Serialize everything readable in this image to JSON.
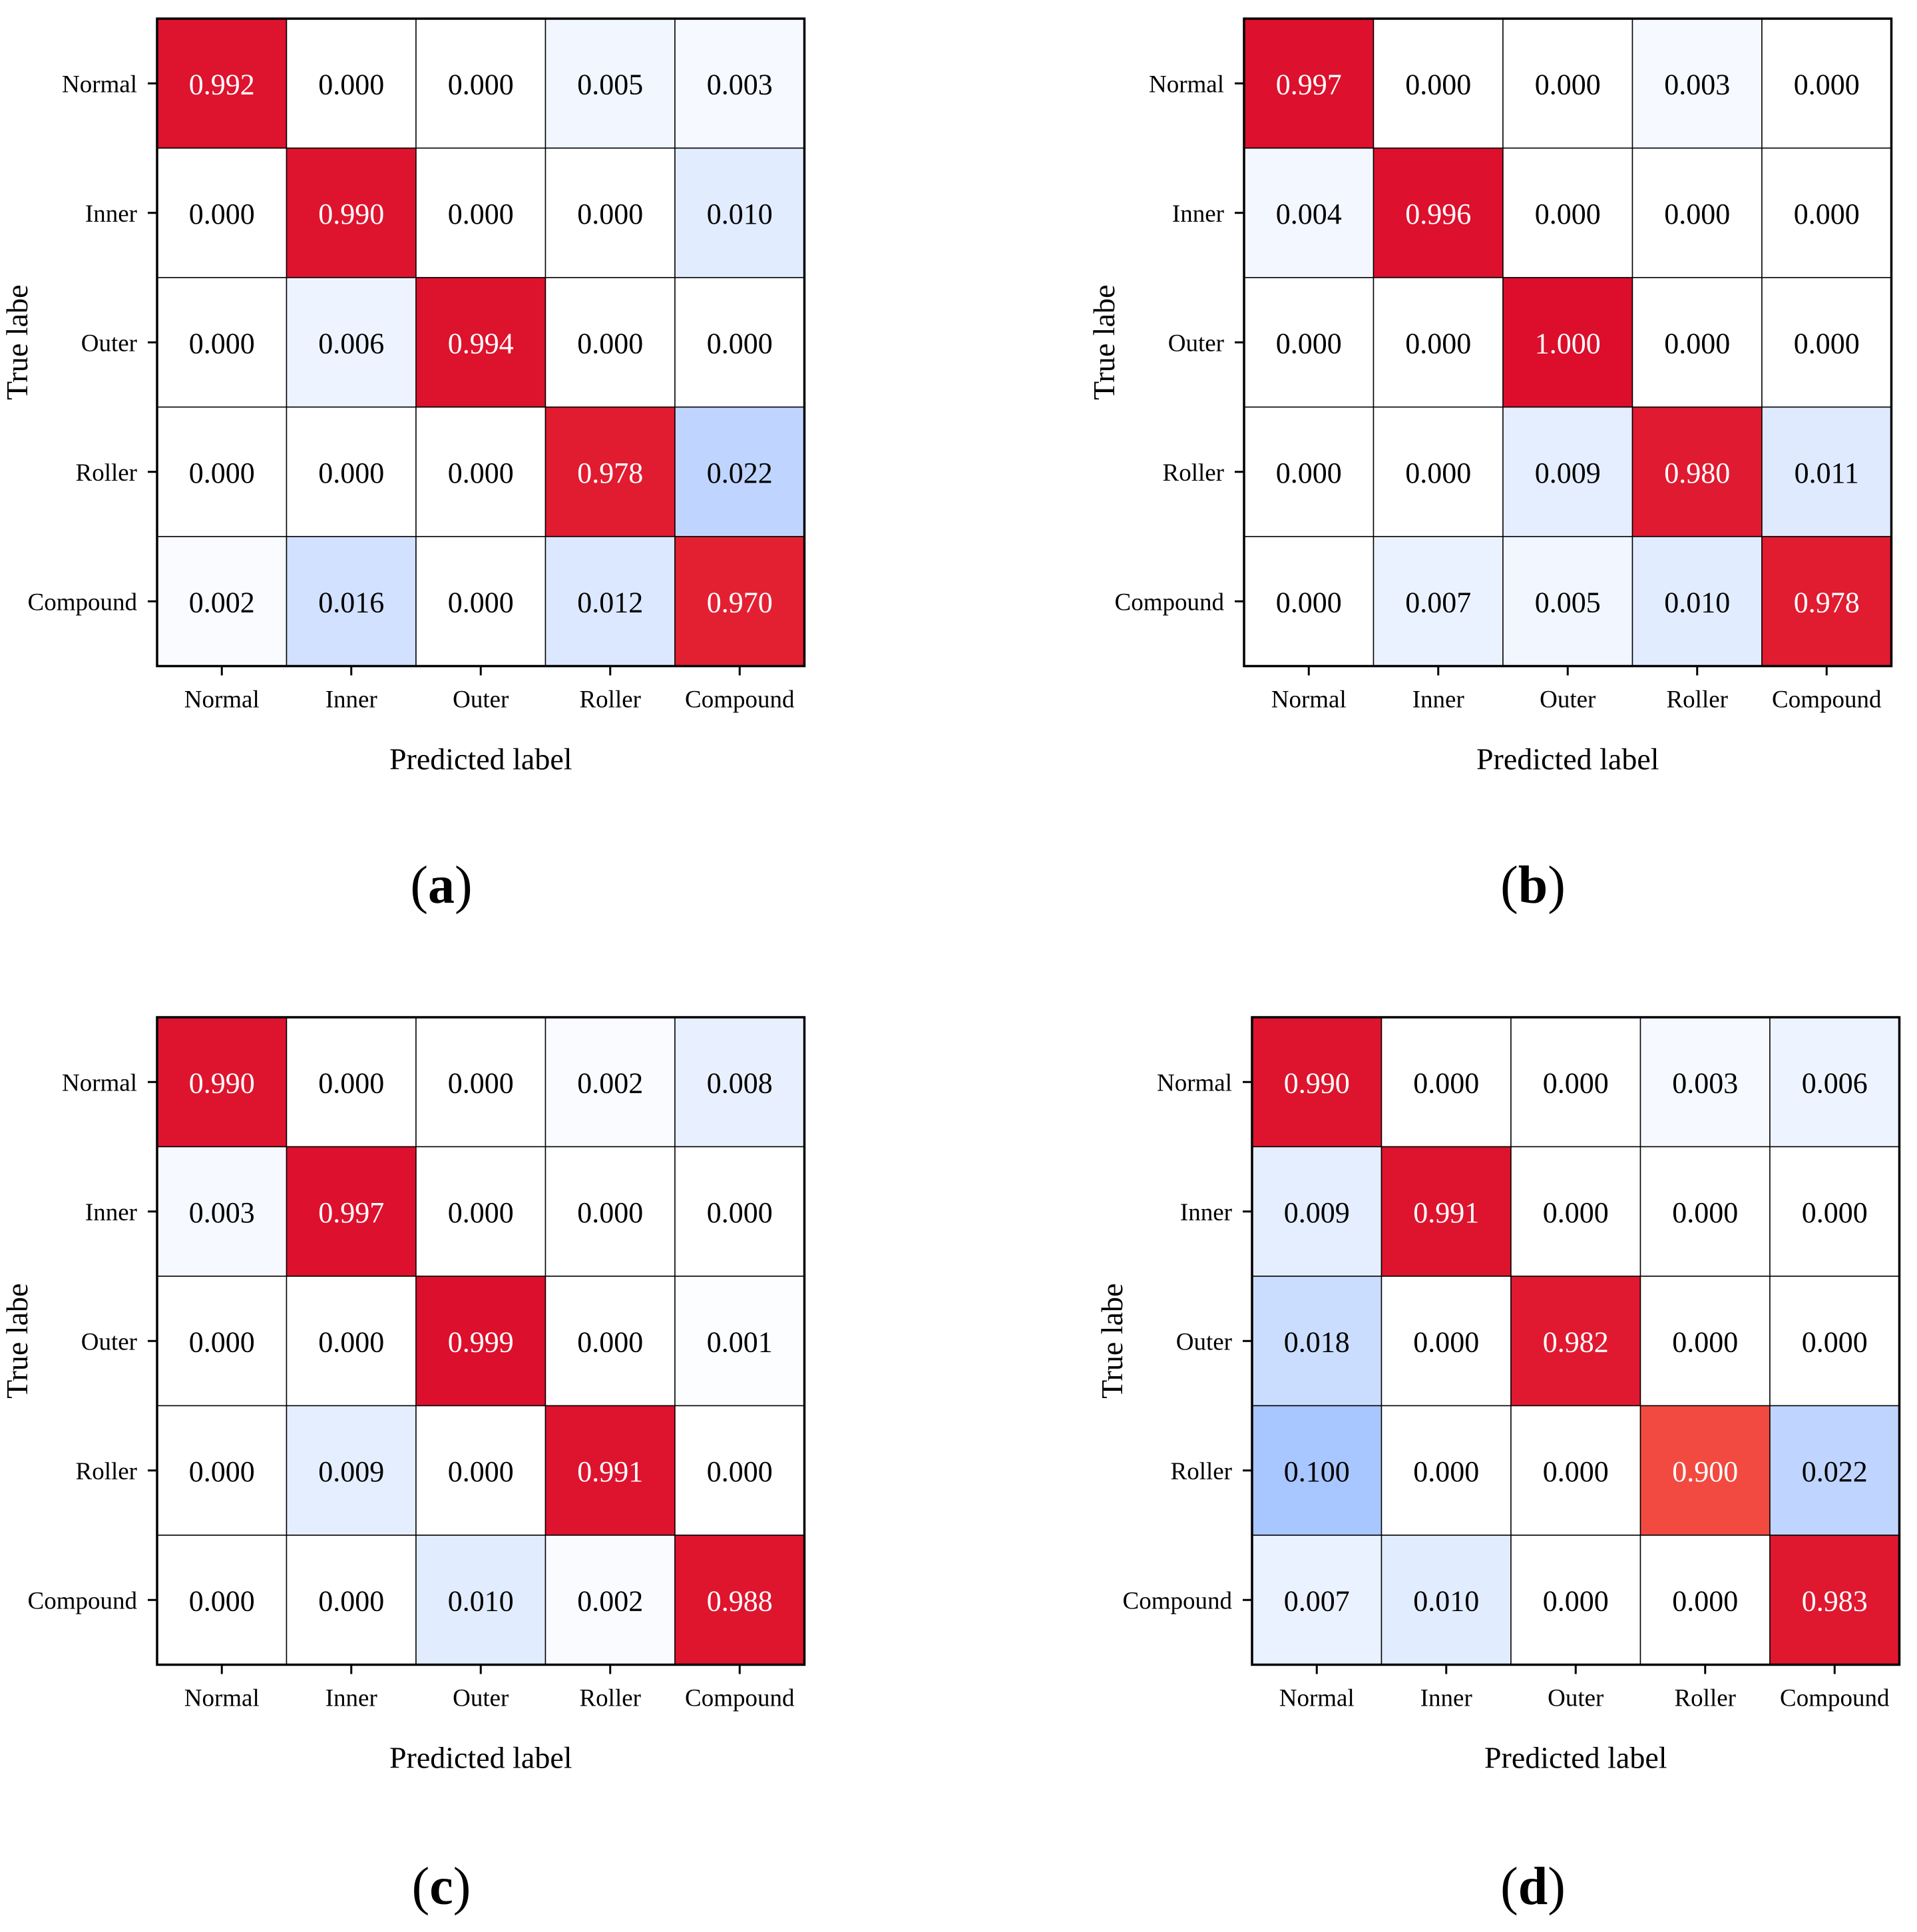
{
  "figure": {
    "class_labels": [
      "Normal",
      "Inner",
      "Outer",
      "Roller",
      "Compound"
    ],
    "colors": {
      "low": "#ffffff",
      "mid": "#a8c6ff",
      "high": "#dc0e2c",
      "grid": "#000000",
      "text_dark": "#000000",
      "text_light": "#ffffff"
    },
    "captions": [
      {
        "letter": "a",
        "open": "(",
        "close": ")"
      },
      {
        "letter": "b",
        "open": "(",
        "close": ")"
      },
      {
        "letter": "c",
        "open": "(",
        "close": ")"
      },
      {
        "letter": "d",
        "open": "(",
        "close": ")"
      }
    ]
  },
  "chart_data": [
    {
      "type": "heatmap",
      "panel": "a",
      "xlabel": "Predicted label",
      "ylabel": "True labe",
      "x_categories": [
        "Normal",
        "Inner",
        "Outer",
        "Roller",
        "Compound"
      ],
      "y_categories": [
        "Normal",
        "Inner",
        "Outer",
        "Roller",
        "Compound"
      ],
      "values": [
        [
          0.992,
          0.0,
          0.0,
          0.005,
          0.003
        ],
        [
          0.0,
          0.99,
          0.0,
          0.0,
          0.01
        ],
        [
          0.0,
          0.006,
          0.994,
          0.0,
          0.0
        ],
        [
          0.0,
          0.0,
          0.0,
          0.978,
          0.022
        ],
        [
          0.002,
          0.016,
          0.0,
          0.012,
          0.97
        ]
      ],
      "labels": [
        [
          "0.992",
          "0.000",
          "0.000",
          "0.005",
          "0.003"
        ],
        [
          "0.000",
          "0.990",
          "0.000",
          "0.000",
          "0.010"
        ],
        [
          "0.000",
          "0.006",
          "0.994",
          "0.000",
          "0.000"
        ],
        [
          "0.000",
          "0.000",
          "0.000",
          "0.978",
          "0.022"
        ],
        [
          "0.002",
          "0.016",
          "0.000",
          "0.012",
          "0.970"
        ]
      ]
    },
    {
      "type": "heatmap",
      "panel": "b",
      "xlabel": "Predicted label",
      "ylabel": "True labe",
      "x_categories": [
        "Normal",
        "Inner",
        "Outer",
        "Roller",
        "Compound"
      ],
      "y_categories": [
        "Normal",
        "Inner",
        "Outer",
        "Roller",
        "Compound"
      ],
      "values": [
        [
          0.997,
          0.0,
          0.0,
          0.003,
          0.0
        ],
        [
          0.004,
          0.996,
          0.0,
          0.0,
          0.0
        ],
        [
          0.0,
          0.0,
          1.0,
          0.0,
          0.0
        ],
        [
          0.0,
          0.0,
          0.009,
          0.98,
          0.011
        ],
        [
          0.0,
          0.007,
          0.005,
          0.01,
          0.978
        ]
      ],
      "labels": [
        [
          "0.997",
          "0.000",
          "0.000",
          "0.003",
          "0.000"
        ],
        [
          "0.004",
          "0.996",
          "0.000",
          "0.000",
          "0.000"
        ],
        [
          "0.000",
          "0.000",
          "1.000",
          "0.000",
          "0.000"
        ],
        [
          "0.000",
          "0.000",
          "0.009",
          "0.980",
          "0.011"
        ],
        [
          "0.000",
          "0.007",
          "0.005",
          "0.010",
          "0.978"
        ]
      ]
    },
    {
      "type": "heatmap",
      "panel": "c",
      "xlabel": "Predicted label",
      "ylabel": "True labe",
      "x_categories": [
        "Normal",
        "Inner",
        "Outer",
        "Roller",
        "Compound"
      ],
      "y_categories": [
        "Normal",
        "Inner",
        "Outer",
        "Roller",
        "Compound"
      ],
      "values": [
        [
          0.99,
          0.0,
          0.0,
          0.002,
          0.008
        ],
        [
          0.003,
          0.997,
          0.0,
          0.0,
          0.0
        ],
        [
          0.0,
          0.0,
          0.999,
          0.0,
          0.001
        ],
        [
          0.0,
          0.009,
          0.0,
          0.991,
          0.0
        ],
        [
          0.0,
          0.0,
          0.01,
          0.002,
          0.988
        ]
      ],
      "labels": [
        [
          "0.990",
          "0.000",
          "0.000",
          "0.002",
          "0.008"
        ],
        [
          "0.003",
          "0.997",
          "0.000",
          "0.000",
          "0.000"
        ],
        [
          "0.000",
          "0.000",
          "0.999",
          "0.000",
          "0.001"
        ],
        [
          "0.000",
          "0.009",
          "0.000",
          "0.991",
          "0.000"
        ],
        [
          "0.000",
          "0.000",
          "0.010",
          "0.002",
          "0.988"
        ]
      ]
    },
    {
      "type": "heatmap",
      "panel": "d",
      "xlabel": "Predicted label",
      "ylabel": "True labe",
      "x_categories": [
        "Normal",
        "Inner",
        "Outer",
        "Roller",
        "Compound"
      ],
      "y_categories": [
        "Normal",
        "Inner",
        "Outer",
        "Roller",
        "Compound"
      ],
      "values": [
        [
          0.99,
          0.0,
          0.0,
          0.003,
          0.006
        ],
        [
          0.009,
          0.991,
          0.0,
          0.0,
          0.0
        ],
        [
          0.018,
          0.0,
          0.982,
          0.0,
          0.0
        ],
        [
          0.1,
          0.0,
          0.0,
          0.9,
          0.022
        ],
        [
          0.007,
          0.01,
          0.0,
          0.0,
          0.983
        ]
      ],
      "labels": [
        [
          "0.990",
          "0.000",
          "0.000",
          "0.003",
          "0.006"
        ],
        [
          "0.009",
          "0.991",
          "0.000",
          "0.000",
          "0.000"
        ],
        [
          "0.018",
          "0.000",
          "0.982",
          "0.000",
          "0.000"
        ],
        [
          "0.100",
          "0.000",
          "0.000",
          "0.900",
          "0.022"
        ],
        [
          "0.007",
          "0.010",
          "0.000",
          "0.000",
          "0.983"
        ]
      ]
    }
  ]
}
